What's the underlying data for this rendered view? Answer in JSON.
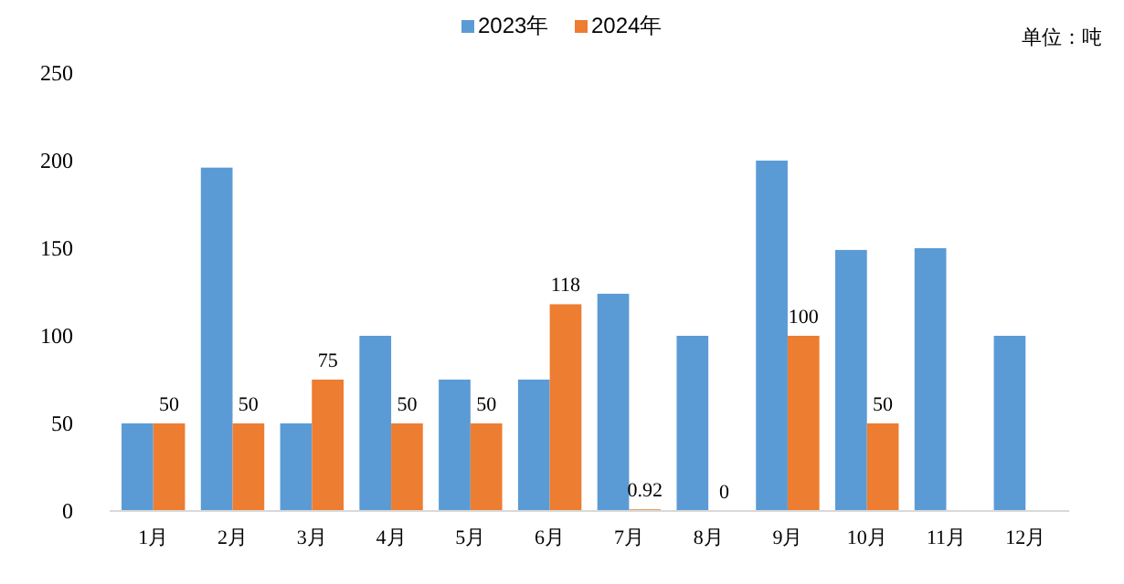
{
  "chart_data": {
    "type": "bar",
    "categories": [
      "1月",
      "2月",
      "3月",
      "4月",
      "5月",
      "6月",
      "7月",
      "8月",
      "9月",
      "10月",
      "11月",
      "12月"
    ],
    "series": [
      {
        "name": "2023年",
        "color": "#5b9bd5",
        "values": [
          50,
          196,
          50,
          100,
          75,
          75,
          124,
          100,
          200,
          149,
          150,
          100
        ]
      },
      {
        "name": "2024年",
        "color": "#ed7d31",
        "values": [
          50,
          50,
          75,
          50,
          50,
          118,
          0.92,
          0,
          100,
          50,
          null,
          null
        ],
        "value_labels": [
          "50",
          "50",
          "75",
          "50",
          "50",
          "118",
          "0.92",
          "0",
          "100",
          "50",
          null,
          null
        ]
      }
    ],
    "ylim": [
      0,
      250
    ],
    "yticks": [
      0,
      50,
      100,
      150,
      200,
      250
    ],
    "grid": false,
    "legend": "top",
    "annotations": [
      "单位：吨"
    ]
  }
}
